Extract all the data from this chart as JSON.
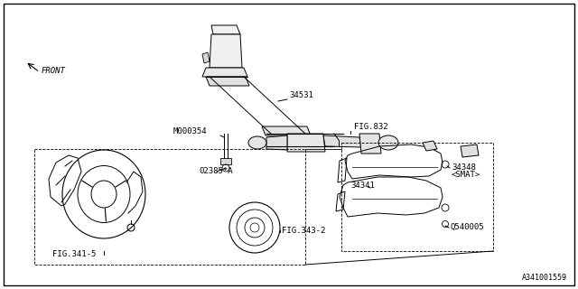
{
  "bg_color": "#ffffff",
  "lc": "#000000",
  "diagram_id": "A341001559",
  "fs": 6.5,
  "labels": {
    "front": "FRONT",
    "m000354": "M000354",
    "fig832": "FIG.832",
    "n34531": "34531",
    "n02385a": "02385*A",
    "fig341_5": "FIG.341-5",
    "fig343_2": "FIG.343-2",
    "n34341": "34341",
    "n34348": "34348",
    "smat": "<SMAT>",
    "q540005": "Q540005"
  }
}
